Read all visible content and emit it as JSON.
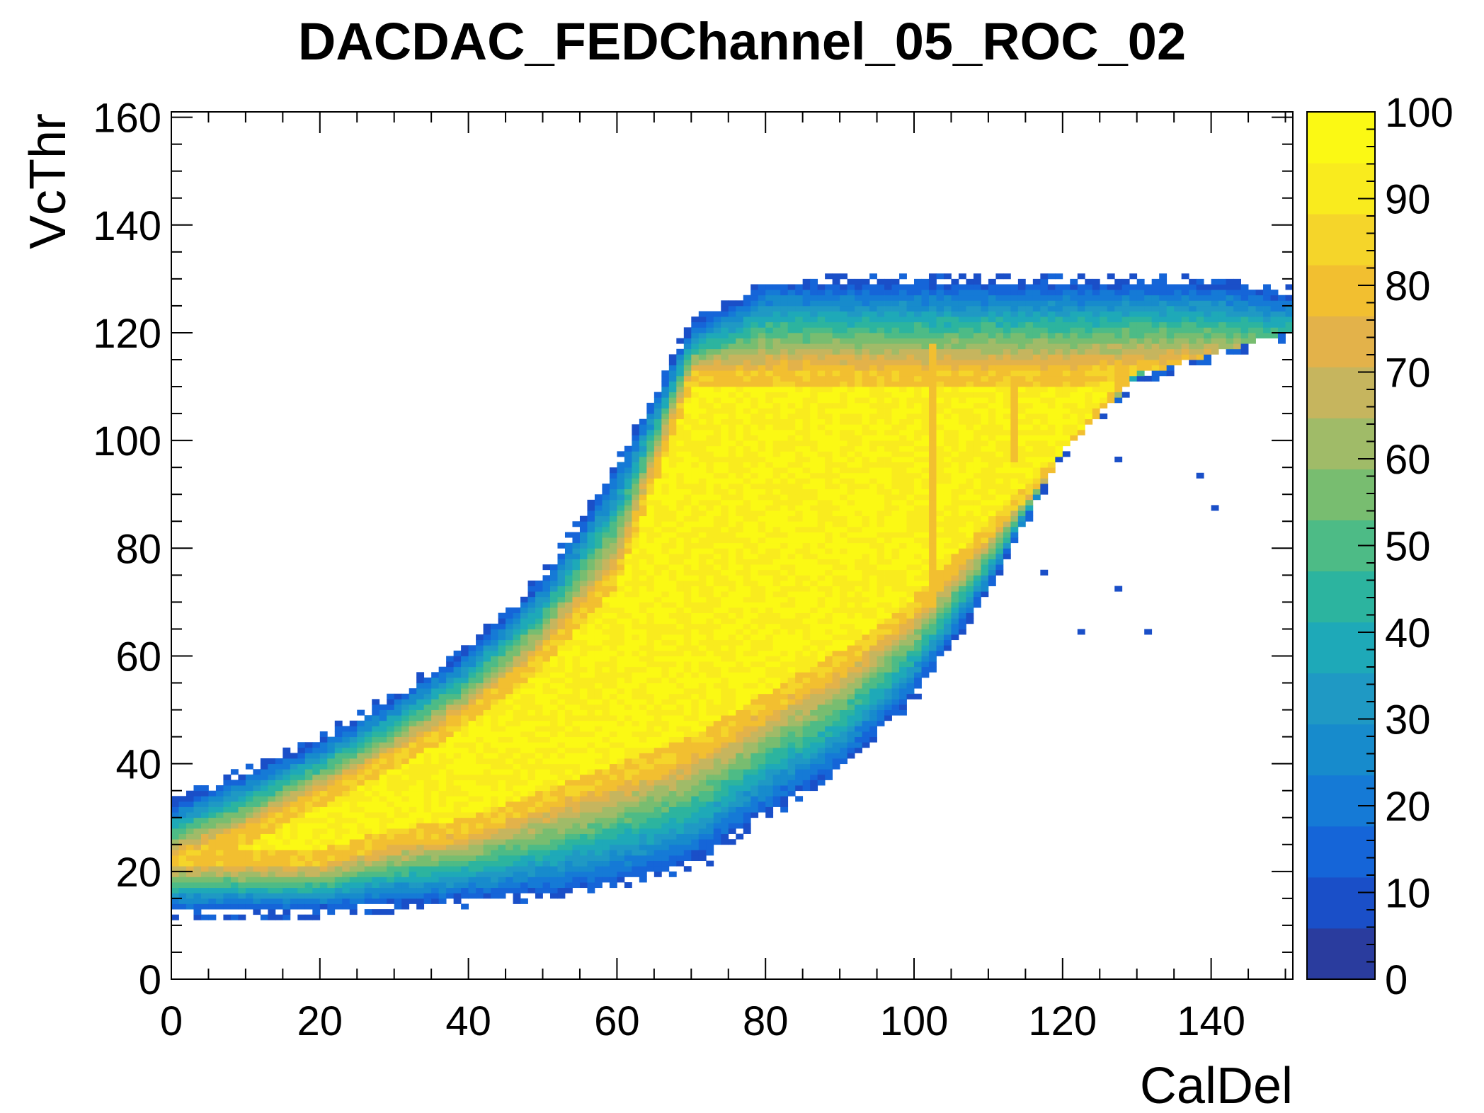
{
  "chart_data": {
    "type": "heatmap",
    "title": "DACDAC_FEDChannel_05_ROC_02",
    "xlabel": "CalDel",
    "ylabel": "VcThr",
    "xlim": [
      0,
      151
    ],
    "ylim": [
      0,
      161
    ],
    "zlim": [
      0,
      100
    ],
    "x_ticks": [
      "0",
      "20",
      "40",
      "60",
      "80",
      "100",
      "120",
      "140"
    ],
    "y_ticks": [
      "0",
      "20",
      "40",
      "60",
      "80",
      "100",
      "120",
      "140",
      "160"
    ],
    "z_ticks": [
      "0",
      "10",
      "20",
      "30",
      "40",
      "50",
      "60",
      "70",
      "80",
      "90",
      "100"
    ],
    "palette": [
      "#2a3c9e",
      "#1a4fc8",
      "#1565d8",
      "#157ad6",
      "#178bcc",
      "#1f99c4",
      "#1ea9b8",
      "#2cb49f",
      "#4dbb86",
      "#78bd70",
      "#a0bb68",
      "#c6b55e",
      "#e3b24a",
      "#f2bf30",
      "#f5d52a",
      "#f9eb1e",
      "#fbf914"
    ],
    "band": {
      "description": "S-shaped efficiency band; yellow core ~100, orange border ~85, green ~60, blue edge ~15",
      "x_values": [
        0,
        10,
        20,
        30,
        40,
        50,
        60,
        70,
        80,
        90,
        100,
        110,
        120,
        130,
        140,
        150
      ],
      "core_lower_vcthr": [
        22,
        22,
        22,
        26,
        28,
        33,
        38,
        43,
        51,
        59,
        69,
        83,
        96,
        113,
        113,
        113
      ],
      "core_upper_vcthr": [
        22,
        27,
        34,
        41,
        49,
        60,
        75,
        112,
        112,
        112,
        112,
        112,
        112,
        113,
        113,
        113
      ],
      "outer_lower_vcthr": [
        13,
        13,
        13,
        14,
        15,
        16,
        18,
        22,
        31,
        39,
        53,
        72,
        98,
        112,
        116,
        120
      ],
      "outer_upper_vcthr": [
        32,
        38,
        44,
        52,
        61,
        74,
        95,
        121,
        129,
        129,
        129,
        129,
        129,
        129,
        129,
        127
      ]
    },
    "features": [
      {
        "type": "vertical_stripe",
        "x": 102,
        "vcthr_from": 69,
        "vcthr_to": 118,
        "value": 82
      },
      {
        "type": "vertical_stripe",
        "x": 113,
        "vcthr_from": 96,
        "vcthr_to": 112,
        "value": 82
      }
    ],
    "sparse_points": [
      {
        "x": 127,
        "y": 96,
        "value": 12
      },
      {
        "x": 138,
        "y": 93,
        "value": 10
      },
      {
        "x": 140,
        "y": 87,
        "value": 10
      },
      {
        "x": 117,
        "y": 75,
        "value": 8
      },
      {
        "x": 127,
        "y": 72,
        "value": 8
      },
      {
        "x": 122,
        "y": 64,
        "value": 8
      },
      {
        "x": 131,
        "y": 64,
        "value": 8
      },
      {
        "x": 72,
        "y": 21,
        "value": 8
      }
    ]
  }
}
